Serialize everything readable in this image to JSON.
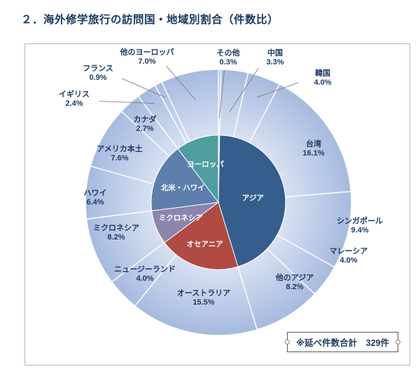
{
  "page": {
    "title": "２．海外修学旅行の訪問国・地域別割合（件数比）"
  },
  "total_box": {
    "label": "※延べ件数合計　329件"
  },
  "chart_data": {
    "type": "pie",
    "subtype": "nested-donut",
    "title": "海外修学旅行の訪問国・地域別割合（件数比）",
    "units": "%",
    "total_note": "※延べ件数合計　329件",
    "center": [
      276,
      226
    ],
    "outer_radius": 190,
    "inner_radius": 96,
    "outer_gradient": [
      "#dde5f5",
      "#a6badf"
    ],
    "label_color": "#1f3864",
    "leader_color": "#808080",
    "outer_ring": [
      {
        "name": "その他",
        "value": 0.3,
        "pct": "0.3%",
        "label": [
          290,
          18
        ],
        "leader_r": 120
      },
      {
        "name": "中国",
        "value": 3.3,
        "pct": "3.3%",
        "label": [
          357,
          18
        ],
        "leader_r": 130
      },
      {
        "name": "韓国",
        "value": 4.0,
        "pct": "4.0%",
        "label": [
          425,
          47
        ],
        "leader_r": 160
      },
      {
        "name": "台湾",
        "value": 16.1,
        "pct": "16.1%",
        "label": [
          412,
          148
        ]
      },
      {
        "name": "シンガポール",
        "value": 9.4,
        "pct": "9.4%",
        "label": [
          478,
          258
        ]
      },
      {
        "name": "マレーシア",
        "value": 4.0,
        "pct": "4.0%",
        "label": [
          462,
          301
        ]
      },
      {
        "name": "他のアジア",
        "value": 8.2,
        "pct": "8.2%",
        "label": [
          385,
          339
        ]
      },
      {
        "name": "オーストラリア",
        "value": 15.5,
        "pct": "15.5%",
        "label": [
          255,
          361
        ]
      },
      {
        "name": "ニュージーランド",
        "value": 4.0,
        "pct": "4.0%",
        "label": [
          171,
          327
        ]
      },
      {
        "name": "ミクロネシア",
        "value": 8.2,
        "pct": "8.2%",
        "label": [
          130,
          268
        ]
      },
      {
        "name": "ハワイ",
        "value": 6.4,
        "pct": "6.4%",
        "label": [
          100,
          218
        ]
      },
      {
        "name": "アメリカ本土",
        "value": 7.6,
        "pct": "7.6%",
        "label": [
          135,
          155
        ]
      },
      {
        "name": "カナダ",
        "value": 2.7,
        "pct": "2.7%",
        "label": [
          171,
          113
        ]
      },
      {
        "name": "イギリス",
        "value": 2.4,
        "pct": "2.4%",
        "label": [
          70,
          77
        ],
        "leader_r": 168
      },
      {
        "name": "フランス",
        "value": 0.9,
        "pct": "0.9%",
        "label": [
          104,
          40
        ],
        "leader_r": 168
      },
      {
        "name": "他のヨーロッパ",
        "value": 7.0,
        "pct": "7.0%",
        "label": [
          174,
          17
        ],
        "leader_r": 150
      }
    ],
    "inner_ring": [
      {
        "name": "その他",
        "value": 0.3,
        "color": "#c9d4e8"
      },
      {
        "name": "アジア",
        "value": 45.0,
        "color": "#355e8d",
        "label_r": 50
      },
      {
        "name": "オセアニア",
        "value": 19.5,
        "color": "#b04a42",
        "label_r": 62
      },
      {
        "name": "ミクロネシア",
        "value": 8.2,
        "color": "#8d85ae",
        "label_r": 58
      },
      {
        "name": "北米・ハワイ",
        "value": 16.7,
        "color": "#5e7fae",
        "label_r": 55
      },
      {
        "name": "ヨーロッパ",
        "value": 10.3,
        "color": "#4f9e9f",
        "label_r": 58
      }
    ]
  }
}
